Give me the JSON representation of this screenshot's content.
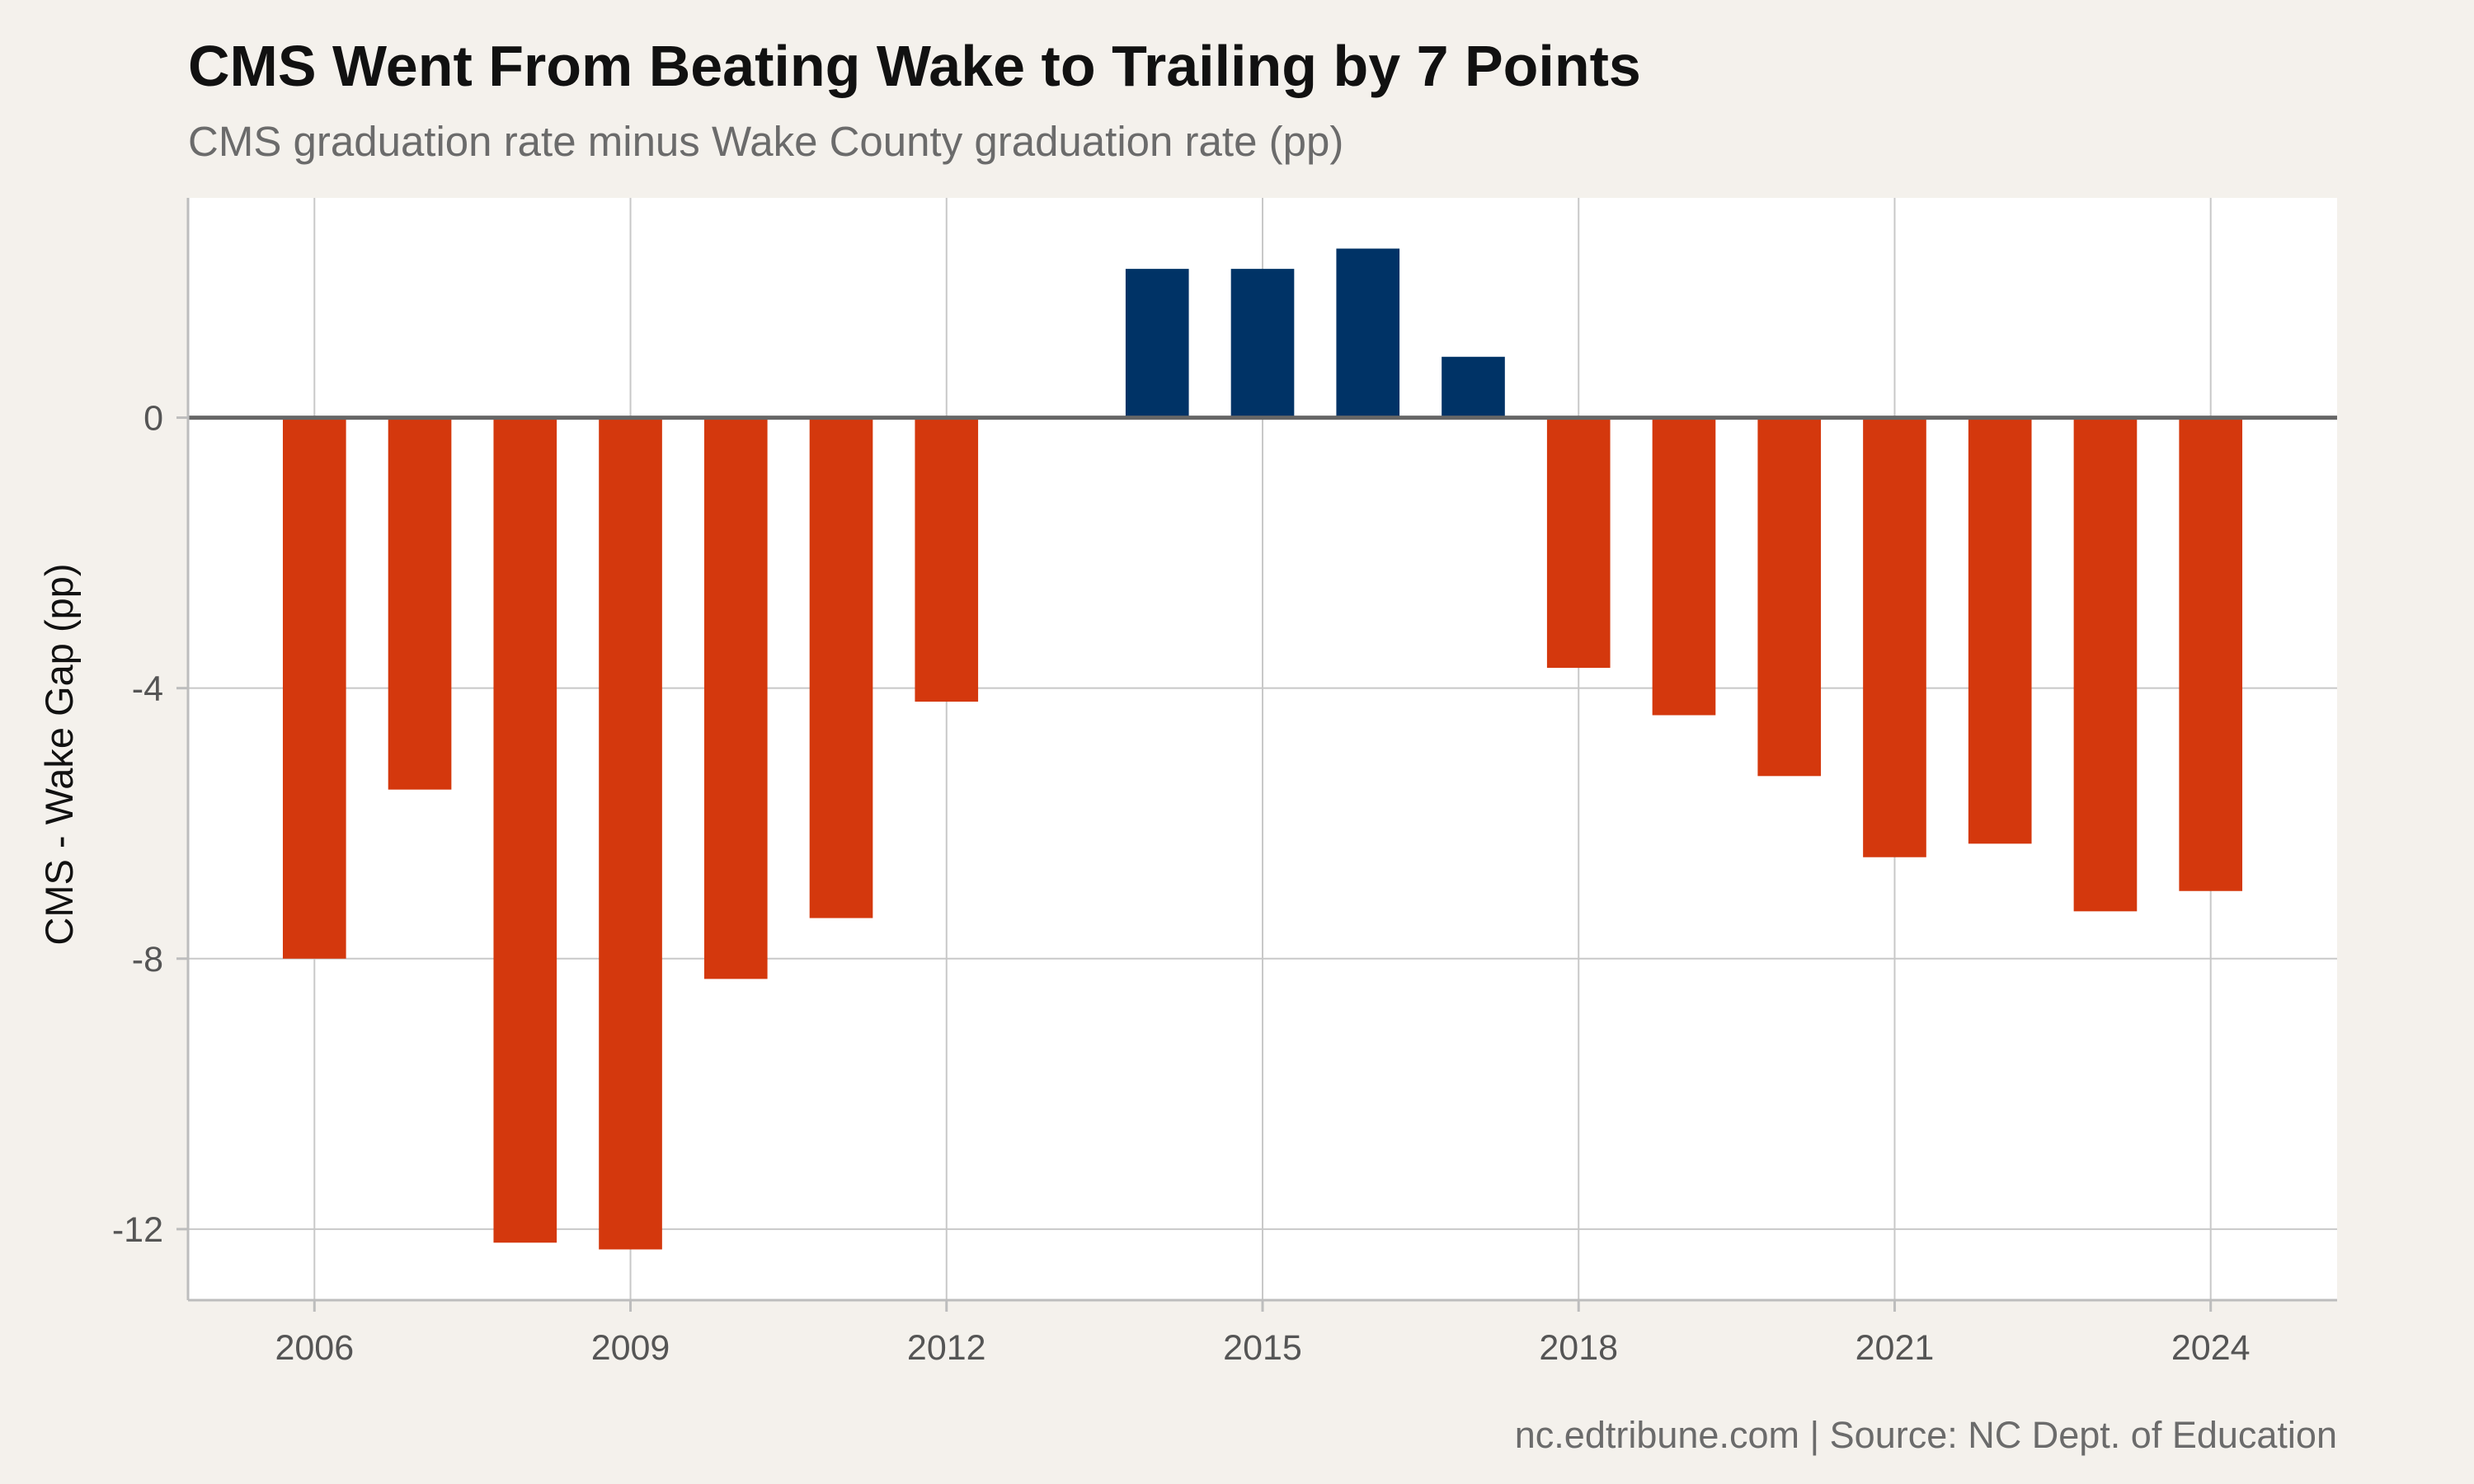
{
  "chart_data": {
    "type": "bar",
    "title": "CMS Went From Beating Wake to Trailing by 7 Points",
    "subtitle": "CMS graduation rate minus Wake County graduation rate (pp)",
    "xlabel": "",
    "ylabel": "CMS - Wake Gap (pp)",
    "caption": "nc.edtribune.com | Source: NC Dept. of Education",
    "x": [
      2006,
      2007,
      2008,
      2009,
      2010,
      2011,
      2012,
      2014,
      2015,
      2016,
      2017,
      2018,
      2019,
      2020,
      2021,
      2022,
      2023,
      2024
    ],
    "values": [
      -8.0,
      -5.5,
      -12.2,
      -12.3,
      -8.3,
      -7.4,
      -4.2,
      2.2,
      2.2,
      2.5,
      0.9,
      -3.7,
      -4.4,
      -5.3,
      -6.5,
      -6.3,
      -7.3,
      -7.0
    ],
    "xlim": [
      2004.8,
      2025.2
    ],
    "ylim": [
      -13.05,
      3.25
    ],
    "x_ticks": [
      2006,
      2009,
      2012,
      2015,
      2018,
      2021,
      2024
    ],
    "x_tick_labels": [
      "2006",
      "2009",
      "2012",
      "2015",
      "2018",
      "2021",
      "2024"
    ],
    "y_ticks": [
      0,
      -4,
      -8,
      -12
    ],
    "y_tick_labels": [
      "0",
      "-4",
      "-8",
      "-12"
    ],
    "grid": true,
    "legend": "none",
    "colors": {
      "positive": "#003366",
      "negative": "#d4380d",
      "zero_line": "#666666",
      "grid": "#c8c8c8",
      "panel": "#ffffff",
      "background": "#f4f1ec"
    }
  }
}
